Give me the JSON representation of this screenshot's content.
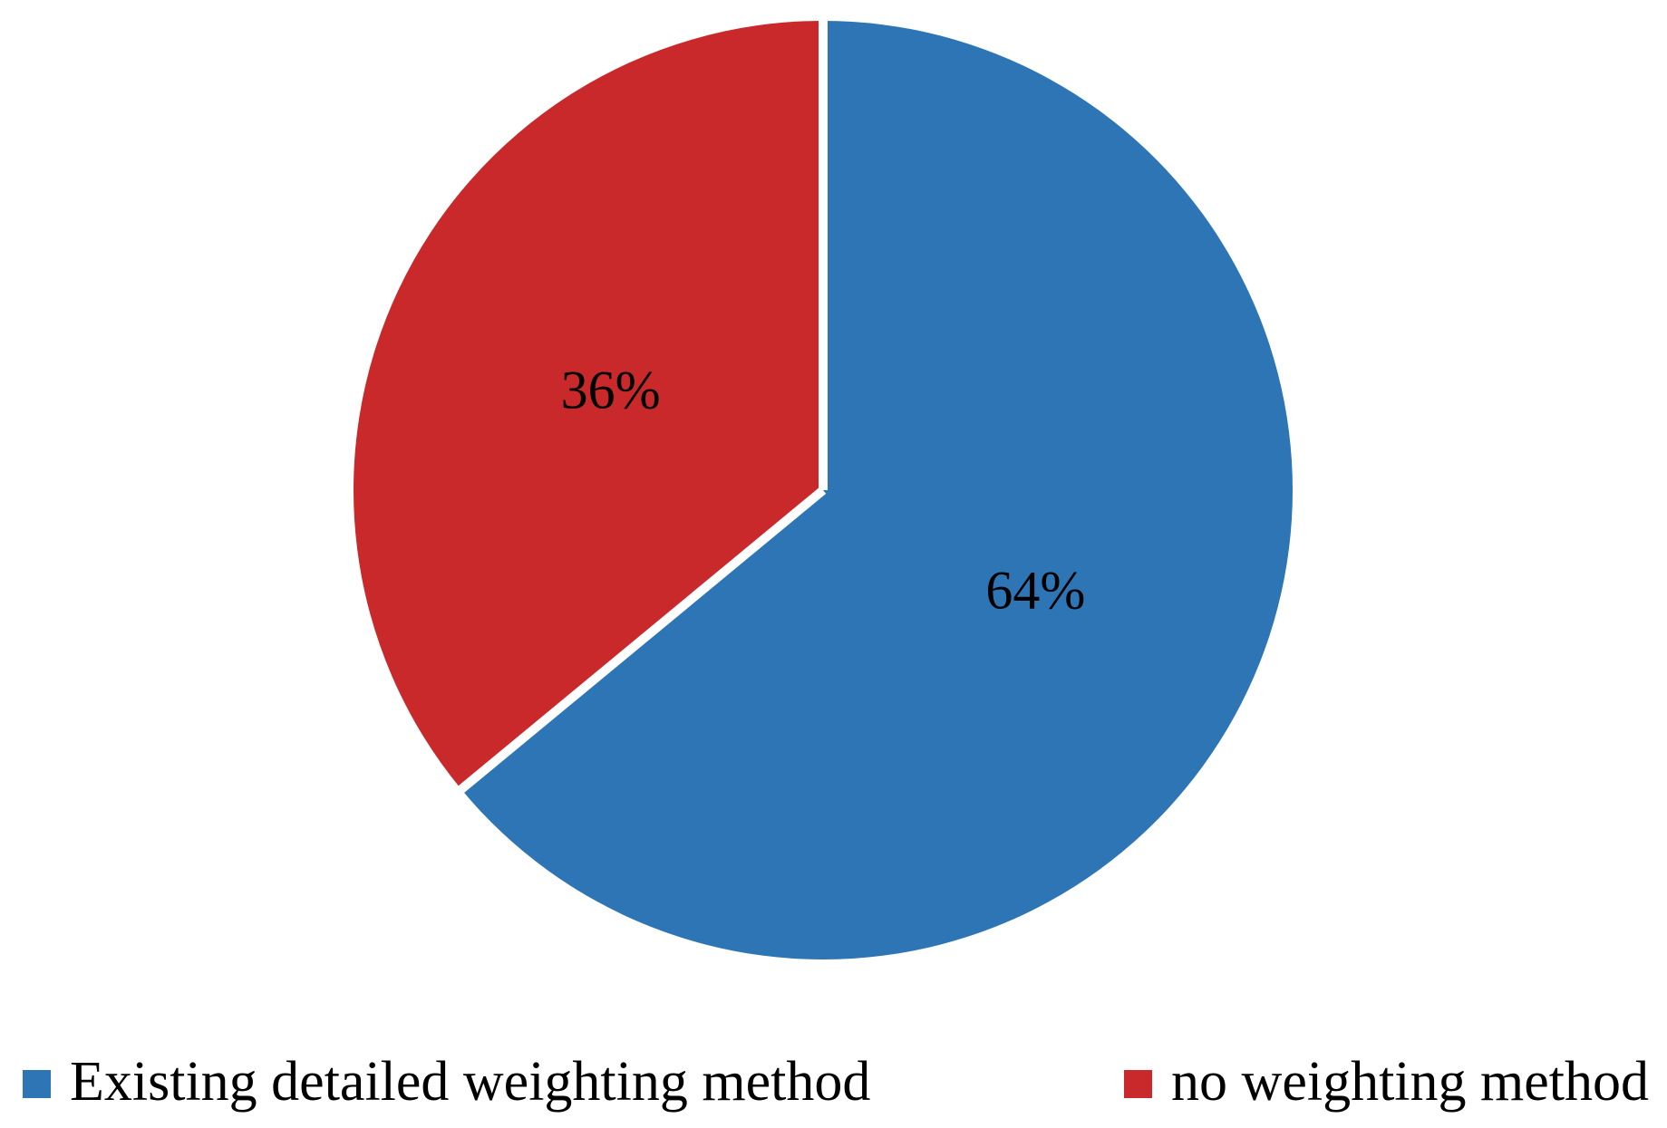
{
  "figure": {
    "background": "#ffffff",
    "text_color": "#000000"
  },
  "chart_data": {
    "type": "pie",
    "title": "",
    "slices": [
      {
        "label": "Existing detailed weighting method",
        "value": 64,
        "data_label": "64%",
        "color": "#2E75B6"
      },
      {
        "label": "no weighting method",
        "value": 36,
        "data_label": "36%",
        "color": "#C9292B"
      }
    ],
    "start_angle_deg": 0,
    "direction": "clockwise",
    "data_labels": "percent shown inside slices at half radius",
    "divider_color": "#FFFFFF",
    "label_text_color": "#000000",
    "legend_position": "bottom",
    "grid": "off"
  }
}
